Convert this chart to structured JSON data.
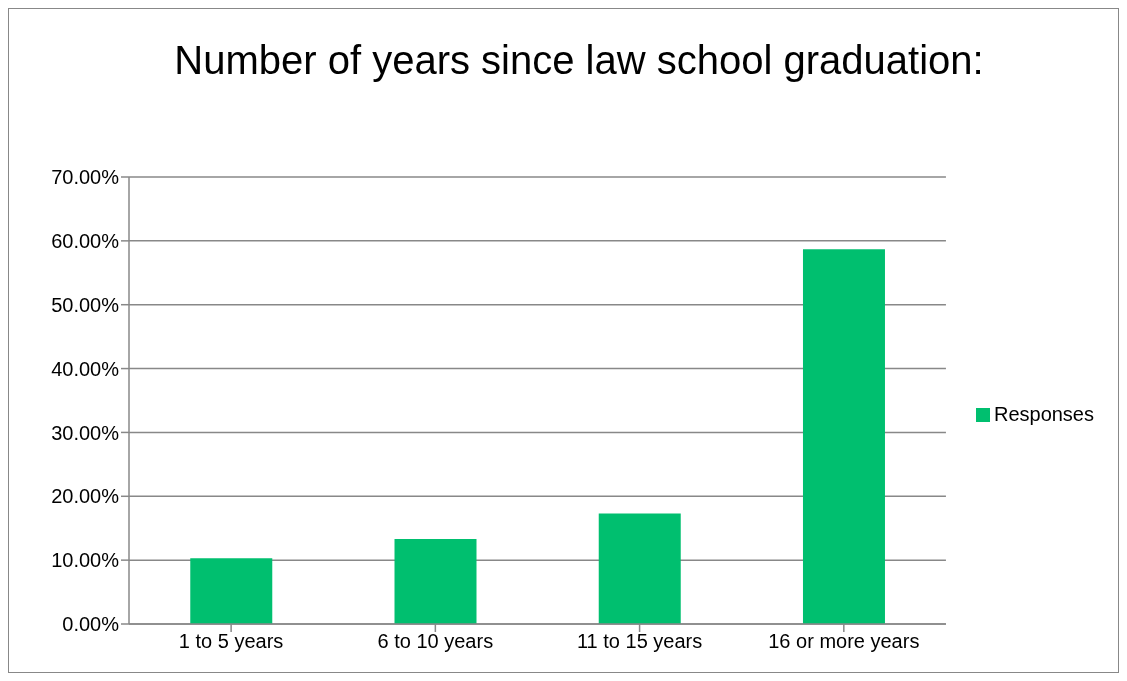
{
  "chart_data": {
    "type": "bar",
    "title": "Number of years since law school graduation:",
    "categories": [
      "1 to 5 years",
      "6 to 10 years",
      "11 to 15 years",
      "16 or more years"
    ],
    "series": [
      {
        "name": "Responses",
        "color": "#00bf6f",
        "values": [
          10.3,
          13.3,
          17.3,
          58.7
        ]
      }
    ],
    "ylim": [
      0,
      70
    ],
    "yticks": [
      {
        "value": 0,
        "label": "0.00%"
      },
      {
        "value": 10,
        "label": "10.00%"
      },
      {
        "value": 20,
        "label": "20.00%"
      },
      {
        "value": 30,
        "label": "30.00%"
      },
      {
        "value": 40,
        "label": "40.00%"
      },
      {
        "value": 50,
        "label": "50.00%"
      },
      {
        "value": 60,
        "label": "60.00%"
      },
      {
        "value": 70,
        "label": "70.00%"
      }
    ],
    "grid": "y",
    "legend": "right"
  }
}
